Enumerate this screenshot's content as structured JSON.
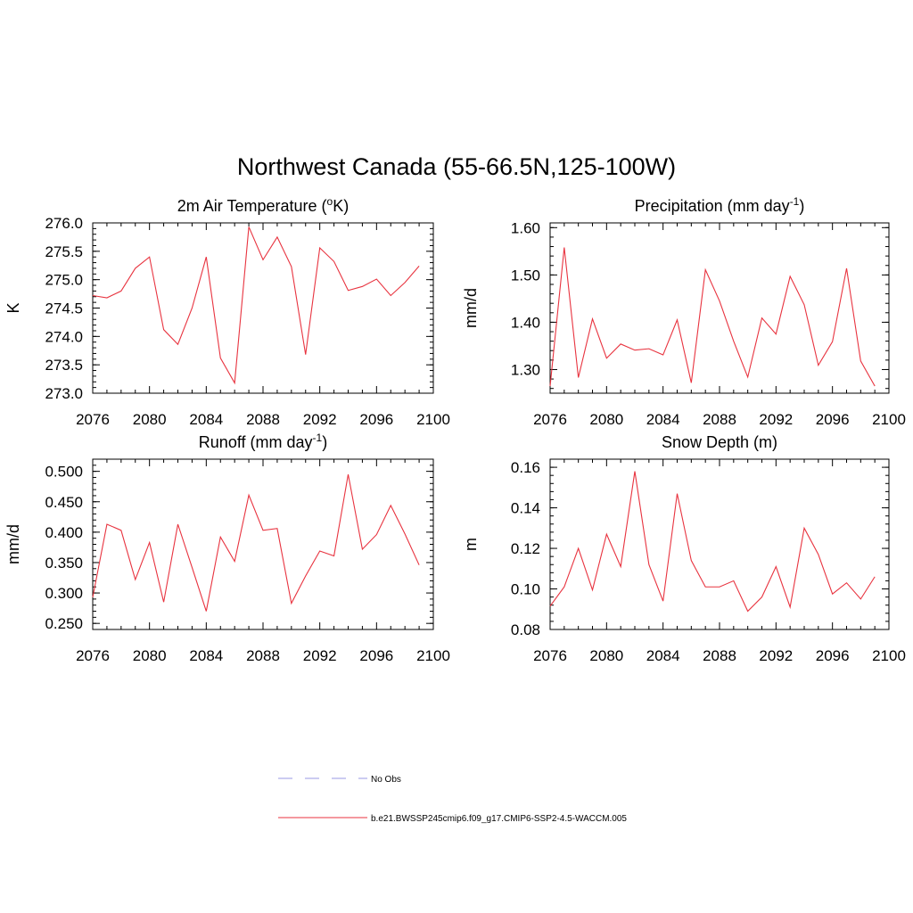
{
  "figure": {
    "title": "Northwest Canada (55-66.5N,125-100W)"
  },
  "legend": {
    "items": [
      {
        "label": "No Obs",
        "color": "#9a9ae6",
        "dash": true
      },
      {
        "label": "b.e21.BWSSP245cmip6.f09_g17.CMIP6-SSP2-4.5-WACCM.005",
        "color": "#e8333f",
        "dash": false
      }
    ]
  },
  "chart_data": [
    {
      "type": "line",
      "title": "2m Air Temperature (°K)",
      "title_parts": {
        "base": "2m Air Temperature (",
        "sup": "o",
        "tail": "K)"
      },
      "ylabel": "K",
      "xlabel": "",
      "xlim": [
        2076,
        2100
      ],
      "ylim": [
        273.0,
        276.0
      ],
      "xticks": [
        "2076",
        "2080",
        "2084",
        "2088",
        "2092",
        "2096",
        "2100"
      ],
      "yticks": [
        "273.0",
        "273.5",
        "274.0",
        "274.5",
        "275.0",
        "275.5",
        "276.0"
      ],
      "series": [
        {
          "color": "#e8333f",
          "x": [
            2076,
            2077,
            2078,
            2079,
            2080,
            2081,
            2082,
            2083,
            2084,
            2085,
            2086,
            2087,
            2088,
            2089,
            2090,
            2091,
            2092,
            2093,
            2094,
            2095,
            2096,
            2097,
            2098,
            2099
          ],
          "values": [
            274.72,
            274.68,
            274.8,
            275.2,
            275.4,
            274.12,
            273.86,
            274.5,
            275.4,
            273.62,
            273.18,
            275.93,
            275.35,
            275.75,
            275.23,
            273.68,
            275.56,
            275.32,
            274.81,
            274.88,
            275.01,
            274.72,
            274.95,
            275.24
          ]
        }
      ]
    },
    {
      "type": "line",
      "title": "Precipitation (mm day-1)",
      "title_parts": {
        "base": "Precipitation (mm day",
        "sup": "-1",
        "tail": ")"
      },
      "ylabel": "mm/d",
      "xlabel": "",
      "xlim": [
        2076,
        2100
      ],
      "ylim": [
        1.25,
        1.61
      ],
      "xticks": [
        "2076",
        "2080",
        "2084",
        "2088",
        "2092",
        "2096",
        "2100"
      ],
      "yticks": [
        "1.30",
        "1.40",
        "1.50",
        "1.60"
      ],
      "series": [
        {
          "color": "#e8333f",
          "x": [
            2076,
            2077,
            2078,
            2079,
            2080,
            2081,
            2082,
            2083,
            2084,
            2085,
            2086,
            2087,
            2088,
            2089,
            2090,
            2091,
            2092,
            2093,
            2094,
            2095,
            2096,
            2097,
            2098,
            2099
          ],
          "values": [
            1.265,
            1.558,
            1.283,
            1.407,
            1.324,
            1.354,
            1.341,
            1.344,
            1.331,
            1.405,
            1.272,
            1.511,
            1.445,
            1.36,
            1.284,
            1.409,
            1.375,
            1.497,
            1.437,
            1.309,
            1.359,
            1.514,
            1.318,
            1.265
          ]
        }
      ]
    },
    {
      "type": "line",
      "title": "Runoff (mm day-1)",
      "title_parts": {
        "base": "Runoff (mm day",
        "sup": "-1",
        "tail": ")"
      },
      "ylabel": "mm/d",
      "xlabel": "",
      "xlim": [
        2076,
        2100
      ],
      "ylim": [
        0.24,
        0.52
      ],
      "xticks": [
        "2076",
        "2080",
        "2084",
        "2088",
        "2092",
        "2096",
        "2100"
      ],
      "yticks": [
        "0.250",
        "0.300",
        "0.350",
        "0.400",
        "0.450",
        "0.500"
      ],
      "series": [
        {
          "color": "#e8333f",
          "x": [
            2076,
            2077,
            2078,
            2079,
            2080,
            2081,
            2082,
            2083,
            2084,
            2085,
            2086,
            2087,
            2088,
            2089,
            2090,
            2091,
            2092,
            2093,
            2094,
            2095,
            2096,
            2097,
            2098,
            2099
          ],
          "values": [
            0.293,
            0.413,
            0.403,
            0.322,
            0.383,
            0.285,
            0.413,
            0.342,
            0.27,
            0.392,
            0.352,
            0.461,
            0.403,
            0.406,
            0.283,
            0.328,
            0.369,
            0.361,
            0.495,
            0.372,
            0.396,
            0.444,
            0.397,
            0.346
          ]
        }
      ]
    },
    {
      "type": "line",
      "title": "Snow Depth (m)",
      "title_parts": {
        "base": "Snow Depth (m)",
        "sup": "",
        "tail": ""
      },
      "ylabel": "m",
      "xlabel": "",
      "xlim": [
        2076,
        2100
      ],
      "ylim": [
        0.08,
        0.164
      ],
      "xticks": [
        "2076",
        "2080",
        "2084",
        "2088",
        "2092",
        "2096",
        "2100"
      ],
      "yticks": [
        "0.08",
        "0.10",
        "0.12",
        "0.14",
        "0.16"
      ],
      "series": [
        {
          "color": "#e8333f",
          "x": [
            2076,
            2077,
            2078,
            2079,
            2080,
            2081,
            2082,
            2083,
            2084,
            2085,
            2086,
            2087,
            2088,
            2089,
            2090,
            2091,
            2092,
            2093,
            2094,
            2095,
            2096,
            2097,
            2098,
            2099
          ],
          "values": [
            0.0915,
            0.101,
            0.12,
            0.0995,
            0.127,
            0.111,
            0.158,
            0.112,
            0.094,
            0.147,
            0.114,
            0.101,
            0.101,
            0.104,
            0.089,
            0.096,
            0.111,
            0.091,
            0.13,
            0.117,
            0.0975,
            0.103,
            0.095,
            0.106
          ]
        }
      ]
    }
  ]
}
